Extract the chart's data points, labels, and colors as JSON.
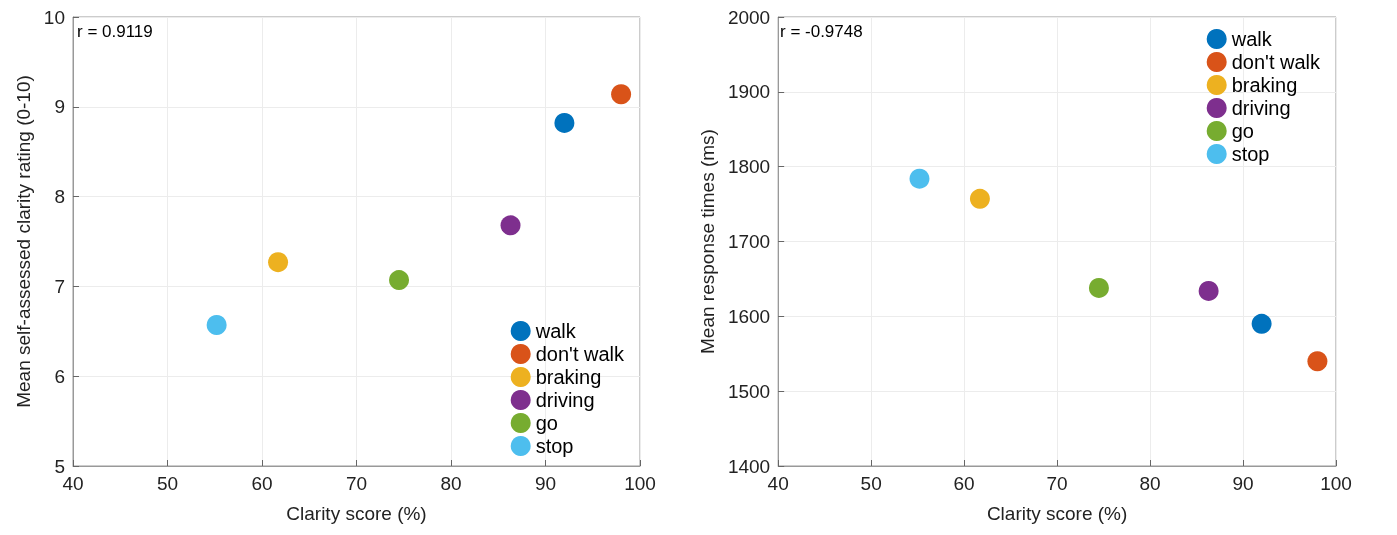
{
  "chart_data": [
    {
      "type": "scatter",
      "xlabel": "Clarity score (%)",
      "ylabel": "Mean self-assessed clarity rating (0-10)",
      "annotations": [
        "r = 0.9119"
      ],
      "xlim": [
        40,
        100
      ],
      "xticks": [
        40,
        50,
        60,
        70,
        80,
        90,
        100
      ],
      "ylim": [
        5,
        10
      ],
      "yticks": [
        5,
        6,
        7,
        8,
        9,
        10
      ],
      "grid": true,
      "legend": "bottom right",
      "marker": "circle",
      "series": [
        {
          "name": "walk",
          "color": "#0072bd",
          "x": [
            92
          ],
          "values": [
            8.82
          ]
        },
        {
          "name": "don't walk",
          "color": "#d95319",
          "x": [
            98
          ],
          "values": [
            9.14
          ]
        },
        {
          "name": "braking",
          "color": "#edb120",
          "x": [
            61.7
          ],
          "values": [
            7.27
          ]
        },
        {
          "name": "driving",
          "color": "#7e2f8e",
          "x": [
            86.3
          ],
          "values": [
            7.68
          ]
        },
        {
          "name": "go",
          "color": "#77ac30",
          "x": [
            74.5
          ],
          "values": [
            7.07
          ]
        },
        {
          "name": "stop",
          "color": "#4dbeee",
          "x": [
            55.2
          ],
          "values": [
            6.57
          ]
        }
      ]
    },
    {
      "type": "scatter",
      "xlabel": "Clarity score (%)",
      "ylabel": "Mean response times (ms)",
      "annotations": [
        "r = -0.9748"
      ],
      "xlim": [
        40,
        100
      ],
      "xticks": [
        40,
        50,
        60,
        70,
        80,
        90,
        100
      ],
      "ylim": [
        1400,
        2000
      ],
      "yticks": [
        1400,
        1500,
        1600,
        1700,
        1800,
        1900,
        2000
      ],
      "grid": true,
      "legend": "top right",
      "marker": "circle",
      "series": [
        {
          "name": "walk",
          "color": "#0072bd",
          "x": [
            92
          ],
          "values": [
            1590
          ]
        },
        {
          "name": "don't walk",
          "color": "#d95319",
          "x": [
            98
          ],
          "values": [
            1540
          ]
        },
        {
          "name": "braking",
          "color": "#edb120",
          "x": [
            61.7
          ],
          "values": [
            1757
          ]
        },
        {
          "name": "driving",
          "color": "#7e2f8e",
          "x": [
            86.3
          ],
          "values": [
            1634
          ]
        },
        {
          "name": "go",
          "color": "#77ac30",
          "x": [
            74.5
          ],
          "values": [
            1638
          ]
        },
        {
          "name": "stop",
          "color": "#4dbeee",
          "x": [
            55.2
          ],
          "values": [
            1784
          ]
        }
      ]
    }
  ]
}
